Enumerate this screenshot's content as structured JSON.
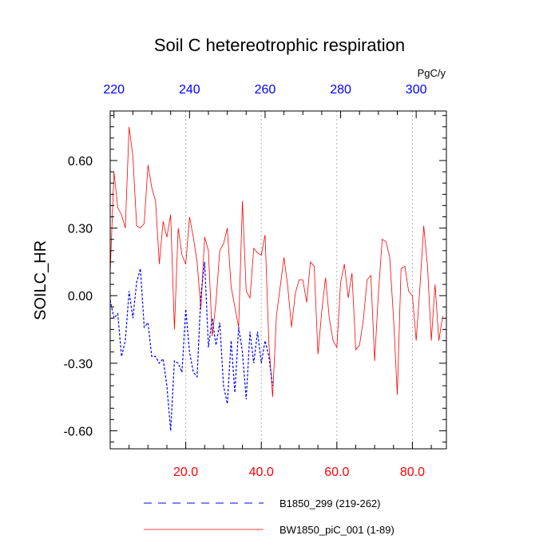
{
  "chart_data": {
    "type": "line",
    "title": "Soil C hetereotrophic respiration",
    "ylabel": "SOILC_HR",
    "xlabel": "",
    "xlim": [
      0,
      89
    ],
    "ylim": [
      -0.68,
      0.82
    ],
    "x_ticks": [
      20,
      40,
      60,
      80
    ],
    "x_tick_labels": [
      "20.0",
      "40.0",
      "60.0",
      "80.0"
    ],
    "y_ticks": [
      0.6,
      0.3,
      0.0,
      -0.3,
      -0.6
    ],
    "y_tick_labels": [
      "0.60",
      "0.30",
      "0.00",
      "-0.30",
      "-0.60"
    ],
    "top_axis": {
      "label": "PgC/y",
      "ticks": [
        220,
        240,
        260,
        280,
        300
      ],
      "tick_labels": [
        "220",
        "240",
        "260",
        "280",
        "300"
      ],
      "offset": 219
    },
    "grid_x": true,
    "series": [
      {
        "name": "BW1850_piC_001 (1-89)",
        "color": "#ff0000",
        "style": "solid",
        "x_start": 0,
        "values": [
          0.1,
          0.55,
          0.39,
          0.36,
          0.3,
          0.75,
          0.62,
          0.31,
          0.3,
          0.32,
          0.58,
          0.48,
          0.42,
          0.14,
          0.33,
          0.26,
          0.36,
          -0.15,
          0.3,
          0.18,
          0.14,
          0.35,
          0.26,
          0.15,
          -0.06,
          0.26,
          0.2,
          -0.18,
          -0.03,
          0.2,
          0.23,
          0.3,
          0.04,
          -0.05,
          -0.14,
          0.42,
          0.02,
          -0.01,
          0.21,
          0.19,
          0.18,
          0.27,
          -0.21,
          -0.45,
          -0.09,
          0.04,
          0.17,
          0.04,
          -0.14,
          0.01,
          0.07,
          0.07,
          -0.03,
          0.15,
          0.13,
          -0.26,
          -0.07,
          0.08,
          -0.1,
          -0.2,
          -0.23,
          0.06,
          0.14,
          -0.01,
          0.1,
          -0.24,
          -0.22,
          -0.11,
          0.07,
          0.09,
          -0.29,
          0.01,
          0.25,
          0.24,
          0.17,
          -0.1,
          -0.44,
          0.12,
          0.13,
          0.02,
          0.0,
          -0.2,
          0.04,
          0.31,
          0.13,
          -0.2,
          0.05,
          -0.2,
          -0.09
        ]
      },
      {
        "name": "B1850_299 (219-262)",
        "color": "#0000ff",
        "style": "dashed",
        "x_start": 0,
        "values": [
          -0.02,
          -0.1,
          -0.08,
          -0.27,
          -0.2,
          0.02,
          -0.1,
          0.06,
          0.12,
          -0.14,
          -0.12,
          -0.27,
          -0.27,
          -0.3,
          -0.28,
          -0.4,
          -0.6,
          -0.29,
          -0.3,
          -0.34,
          -0.06,
          -0.25,
          -0.34,
          -0.36,
          0.0,
          0.15,
          -0.23,
          -0.1,
          -0.22,
          -0.12,
          -0.4,
          -0.48,
          -0.2,
          -0.43,
          -0.14,
          -0.25,
          -0.46,
          -0.16,
          -0.3,
          -0.16,
          -0.3,
          -0.2,
          -0.27,
          -0.4
        ]
      }
    ]
  }
}
